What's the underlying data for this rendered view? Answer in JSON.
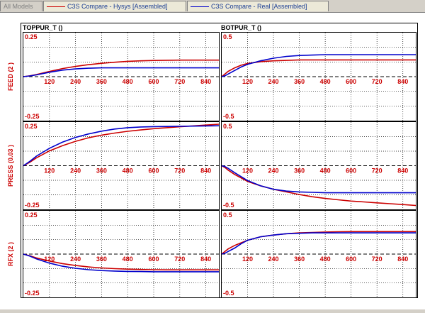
{
  "tabs": [
    {
      "label": "All Models",
      "active": false
    },
    {
      "label": "C3S Compare - Hysys [Assembled]",
      "active": true,
      "color": "#cc0000"
    },
    {
      "label": "C3S Compare - Real [Assembled]",
      "active": false,
      "color": "#0000cc"
    }
  ],
  "colors": {
    "hysys": "#cc0000",
    "real": "#0000cc",
    "axis_text": "#cc0000",
    "title_text": "#000000"
  },
  "chart_data": [
    {
      "type": "line",
      "title": "TOPPUR_T ()",
      "ylabel": "FEED (2 )",
      "ytick_top": "0.25",
      "ytick_bottom": "-0.25",
      "ylim": [
        -0.25,
        0.25
      ],
      "xlim": [
        0,
        900
      ],
      "x_ticks": [
        120,
        240,
        360,
        480,
        600,
        720,
        840
      ],
      "series": [
        {
          "name": "C3S Compare - Hysys [Assembled]",
          "x": [
            0,
            30,
            60,
            120,
            180,
            240,
            300,
            360,
            420,
            480,
            540,
            600,
            660,
            720,
            780,
            840,
            900
          ],
          "y": [
            0,
            0.005,
            0.012,
            0.03,
            0.046,
            0.058,
            0.068,
            0.076,
            0.082,
            0.087,
            0.09,
            0.092,
            0.093,
            0.094,
            0.094,
            0.094,
            0.094
          ]
        },
        {
          "name": "C3S Compare - Real [Assembled]",
          "x": [
            0,
            30,
            60,
            120,
            180,
            240,
            300,
            360,
            420,
            480,
            540,
            600,
            660,
            720,
            780,
            840,
            900
          ],
          "y": [
            0,
            0.004,
            0.01,
            0.025,
            0.037,
            0.044,
            0.048,
            0.05,
            0.05,
            0.05,
            0.05,
            0.05,
            0.05,
            0.05,
            0.05,
            0.05,
            0.05
          ]
        }
      ]
    },
    {
      "type": "line",
      "title": "BOTPUR_T ()",
      "ylabel": "",
      "ytick_top": "0.5",
      "ytick_bottom": "-0.5",
      "ylim": [
        -0.5,
        0.5
      ],
      "xlim": [
        0,
        900
      ],
      "x_ticks": [
        120,
        240,
        360,
        480,
        600,
        720,
        840
      ],
      "series": [
        {
          "name": "C3S Compare - Hysys [Assembled]",
          "x": [
            0,
            15,
            30,
            60,
            90,
            120,
            180,
            240,
            300,
            360,
            420,
            480,
            540,
            600,
            720,
            840,
            900
          ],
          "y": [
            0,
            0.03,
            0.06,
            0.1,
            0.13,
            0.15,
            0.17,
            0.18,
            0.185,
            0.19,
            0.19,
            0.19,
            0.19,
            0.19,
            0.19,
            0.19,
            0.19
          ]
        },
        {
          "name": "C3S Compare - Real [Assembled]",
          "x": [
            0,
            15,
            30,
            60,
            90,
            120,
            180,
            240,
            300,
            360,
            420,
            480,
            540,
            600,
            720,
            840,
            900
          ],
          "y": [
            0,
            0.01,
            0.03,
            0.07,
            0.11,
            0.14,
            0.18,
            0.21,
            0.23,
            0.24,
            0.245,
            0.25,
            0.25,
            0.25,
            0.25,
            0.25,
            0.25
          ]
        }
      ]
    },
    {
      "type": "line",
      "title": "",
      "ylabel": "PRESS (0.03 )",
      "ytick_top": "0.25",
      "ytick_bottom": "-0.25",
      "ylim": [
        -0.25,
        0.25
      ],
      "xlim": [
        0,
        900
      ],
      "x_ticks": [
        120,
        240,
        360,
        480,
        600,
        720,
        840
      ],
      "series": [
        {
          "name": "C3S Compare - Hysys [Assembled]",
          "x": [
            0,
            30,
            60,
            120,
            180,
            240,
            300,
            360,
            420,
            480,
            540,
            600,
            660,
            720,
            780,
            840,
            900
          ],
          "y": [
            0,
            0.02,
            0.045,
            0.085,
            0.115,
            0.14,
            0.16,
            0.175,
            0.187,
            0.197,
            0.205,
            0.212,
            0.218,
            0.223,
            0.228,
            0.233,
            0.238
          ]
        },
        {
          "name": "C3S Compare - Real [Assembled]",
          "x": [
            0,
            30,
            60,
            120,
            180,
            240,
            300,
            360,
            420,
            480,
            540,
            600,
            660,
            720,
            780,
            840,
            900
          ],
          "y": [
            0,
            0.025,
            0.055,
            0.1,
            0.135,
            0.162,
            0.182,
            0.198,
            0.21,
            0.218,
            0.222,
            0.224,
            0.225,
            0.226,
            0.227,
            0.228,
            0.229
          ]
        }
      ]
    },
    {
      "type": "line",
      "title": "",
      "ylabel": "",
      "ytick_top": "0.5",
      "ytick_bottom": "-0.5",
      "ylim": [
        -0.5,
        0.5
      ],
      "xlim": [
        0,
        900
      ],
      "x_ticks": [
        120,
        240,
        360,
        480,
        600,
        720,
        840
      ],
      "series": [
        {
          "name": "C3S Compare - Hysys [Assembled]",
          "x": [
            0,
            15,
            30,
            60,
            120,
            180,
            240,
            300,
            360,
            420,
            480,
            540,
            600,
            660,
            720,
            780,
            840,
            900
          ],
          "y": [
            0,
            -0.02,
            -0.05,
            -0.1,
            -0.18,
            -0.23,
            -0.27,
            -0.3,
            -0.33,
            -0.355,
            -0.375,
            -0.39,
            -0.405,
            -0.415,
            -0.425,
            -0.435,
            -0.445,
            -0.455
          ]
        },
        {
          "name": "C3S Compare - Real [Assembled]",
          "x": [
            0,
            15,
            30,
            60,
            120,
            180,
            240,
            300,
            360,
            420,
            480,
            540,
            600,
            660,
            720,
            780,
            840,
            900
          ],
          "y": [
            0,
            -0.01,
            -0.03,
            -0.08,
            -0.17,
            -0.23,
            -0.27,
            -0.29,
            -0.3,
            -0.305,
            -0.31,
            -0.31,
            -0.31,
            -0.31,
            -0.31,
            -0.31,
            -0.31,
            -0.31
          ]
        }
      ]
    },
    {
      "type": "line",
      "title": "",
      "ylabel": "RFX (2 )",
      "ytick_top": "0.25",
      "ytick_bottom": "-0.25",
      "ylim": [
        -0.25,
        0.25
      ],
      "xlim": [
        0,
        900
      ],
      "x_ticks": [
        120,
        240,
        360,
        480,
        600,
        720,
        840
      ],
      "series": [
        {
          "name": "C3S Compare - Hysys [Assembled]",
          "x": [
            0,
            30,
            60,
            120,
            180,
            240,
            300,
            360,
            420,
            480,
            540,
            600,
            660,
            720,
            780,
            840,
            900
          ],
          "y": [
            0,
            -0.01,
            -0.022,
            -0.04,
            -0.055,
            -0.066,
            -0.074,
            -0.08,
            -0.084,
            -0.087,
            -0.089,
            -0.09,
            -0.091,
            -0.091,
            -0.091,
            -0.091,
            -0.091
          ]
        },
        {
          "name": "C3S Compare - Real [Assembled]",
          "x": [
            0,
            30,
            60,
            120,
            180,
            240,
            300,
            360,
            420,
            480,
            540,
            600,
            660,
            720,
            780,
            840,
            900
          ],
          "y": [
            0,
            -0.012,
            -0.028,
            -0.052,
            -0.07,
            -0.082,
            -0.09,
            -0.095,
            -0.098,
            -0.1,
            -0.101,
            -0.102,
            -0.102,
            -0.102,
            -0.102,
            -0.102,
            -0.102
          ]
        }
      ]
    },
    {
      "type": "line",
      "title": "",
      "ylabel": "",
      "ytick_top": "0.5",
      "ytick_bottom": "-0.5",
      "ylim": [
        -0.5,
        0.5
      ],
      "xlim": [
        0,
        900
      ],
      "x_ticks": [
        120,
        240,
        360,
        480,
        600,
        720,
        840
      ],
      "series": [
        {
          "name": "C3S Compare - Hysys [Assembled]",
          "x": [
            0,
            15,
            30,
            60,
            90,
            120,
            180,
            240,
            300,
            360,
            420,
            480,
            540,
            600,
            720,
            840,
            900
          ],
          "y": [
            0,
            0.03,
            0.06,
            0.1,
            0.13,
            0.16,
            0.2,
            0.22,
            0.235,
            0.245,
            0.25,
            0.255,
            0.258,
            0.26,
            0.26,
            0.26,
            0.26
          ]
        },
        {
          "name": "C3S Compare - Real [Assembled]",
          "x": [
            0,
            15,
            30,
            60,
            90,
            120,
            180,
            240,
            300,
            360,
            420,
            480,
            540,
            600,
            720,
            840,
            900
          ],
          "y": [
            0,
            0.01,
            0.03,
            0.07,
            0.12,
            0.16,
            0.2,
            0.22,
            0.235,
            0.24,
            0.245,
            0.245,
            0.245,
            0.245,
            0.245,
            0.245,
            0.245
          ]
        }
      ]
    }
  ]
}
